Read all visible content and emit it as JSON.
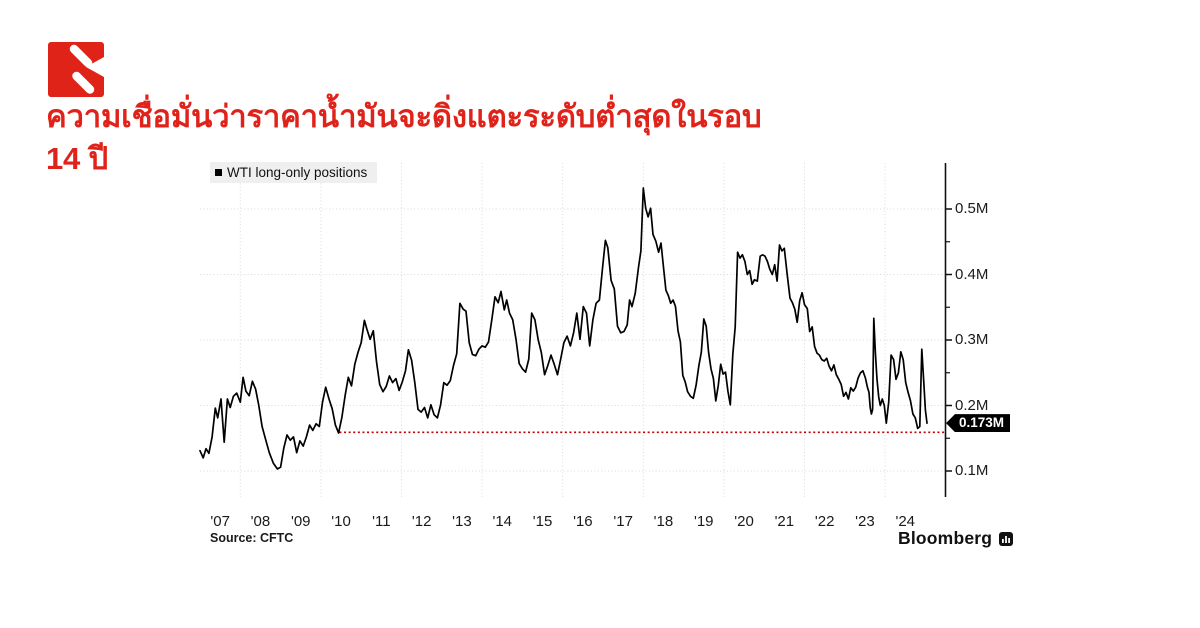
{
  "logo": {
    "name": "publisher-logo",
    "color": "#e02318"
  },
  "headline": {
    "text": "ความเชื่อมั่นว่าราคาน้ำมันจะดิ่งแตะระดับต่ำสุดในรอบ 14 ปี",
    "color": "#e0231a"
  },
  "chart_data": {
    "type": "line",
    "title": "WTI long-only positions",
    "legend": "WTI long-only positions",
    "source": "Source: CFTC",
    "branding": "Bloomberg",
    "grid": true,
    "legend_position": "top-left",
    "axis_range": {
      "x": [
        2007,
        2025.1
      ],
      "y_axis_side": "right",
      "y": [
        0.05,
        0.57
      ]
    },
    "y_ticks": [
      {
        "value": 0.5,
        "label": "0.5M"
      },
      {
        "value": 0.4,
        "label": "0.4M"
      },
      {
        "value": 0.3,
        "label": "0.3M"
      },
      {
        "value": 0.2,
        "label": "0.2M"
      },
      {
        "value": 0.1,
        "label": "0.1M"
      }
    ],
    "y_minor_ticks": [
      0.45,
      0.35,
      0.25,
      0.15
    ],
    "x_ticks": [
      {
        "year": 2007.5,
        "label": "'07"
      },
      {
        "year": 2008.5,
        "label": "'08"
      },
      {
        "year": 2009.5,
        "label": "'09"
      },
      {
        "year": 2010.5,
        "label": "'10"
      },
      {
        "year": 2011.5,
        "label": "'11"
      },
      {
        "year": 2012.5,
        "label": "'12"
      },
      {
        "year": 2013.5,
        "label": "'13"
      },
      {
        "year": 2014.5,
        "label": "'14"
      },
      {
        "year": 2015.5,
        "label": "'15"
      },
      {
        "year": 2016.5,
        "label": "'16"
      },
      {
        "year": 2017.5,
        "label": "'17"
      },
      {
        "year": 2018.5,
        "label": "'18"
      },
      {
        "year": 2019.5,
        "label": "'19"
      },
      {
        "year": 2020.5,
        "label": "'20"
      },
      {
        "year": 2021.5,
        "label": "'21"
      },
      {
        "year": 2022.5,
        "label": "'22"
      },
      {
        "year": 2023.5,
        "label": "'23"
      },
      {
        "year": 2024.5,
        "label": "'24"
      }
    ],
    "grid_years": [
      2008,
      2010,
      2012,
      2014,
      2016,
      2018,
      2020,
      2022,
      2024
    ],
    "reference_line": {
      "value": 0.159,
      "start_year": 2010.46,
      "color": "#c40000",
      "style": "dotted",
      "meaning": "14-year low level"
    },
    "annotation": {
      "label": "0.173M",
      "value": 0.173
    },
    "series": [
      {
        "name": "WTI long-only positions",
        "color": "#000000",
        "points": [
          [
            2007.0,
            0.131
          ],
          [
            2007.08,
            0.12
          ],
          [
            2007.15,
            0.134
          ],
          [
            2007.22,
            0.127
          ],
          [
            2007.3,
            0.152
          ],
          [
            2007.38,
            0.196
          ],
          [
            2007.44,
            0.181
          ],
          [
            2007.52,
            0.21
          ],
          [
            2007.6,
            0.144
          ],
          [
            2007.68,
            0.21
          ],
          [
            2007.75,
            0.197
          ],
          [
            2007.83,
            0.214
          ],
          [
            2007.91,
            0.219
          ],
          [
            2008.0,
            0.205
          ],
          [
            2008.07,
            0.243
          ],
          [
            2008.14,
            0.222
          ],
          [
            2008.22,
            0.215
          ],
          [
            2008.3,
            0.237
          ],
          [
            2008.38,
            0.225
          ],
          [
            2008.46,
            0.2
          ],
          [
            2008.54,
            0.168
          ],
          [
            2008.62,
            0.15
          ],
          [
            2008.72,
            0.128
          ],
          [
            2008.82,
            0.112
          ],
          [
            2008.92,
            0.103
          ],
          [
            2009.0,
            0.106
          ],
          [
            2009.08,
            0.135
          ],
          [
            2009.16,
            0.155
          ],
          [
            2009.24,
            0.147
          ],
          [
            2009.32,
            0.152
          ],
          [
            2009.4,
            0.128
          ],
          [
            2009.48,
            0.146
          ],
          [
            2009.56,
            0.138
          ],
          [
            2009.64,
            0.152
          ],
          [
            2009.72,
            0.17
          ],
          [
            2009.8,
            0.162
          ],
          [
            2009.88,
            0.172
          ],
          [
            2009.96,
            0.168
          ],
          [
            2010.04,
            0.205
          ],
          [
            2010.12,
            0.228
          ],
          [
            2010.2,
            0.21
          ],
          [
            2010.28,
            0.195
          ],
          [
            2010.36,
            0.17
          ],
          [
            2010.44,
            0.158
          ],
          [
            2010.52,
            0.182
          ],
          [
            2010.6,
            0.215
          ],
          [
            2010.68,
            0.243
          ],
          [
            2010.76,
            0.23
          ],
          [
            2010.84,
            0.263
          ],
          [
            2010.92,
            0.281
          ],
          [
            2011.0,
            0.296
          ],
          [
            2011.08,
            0.33
          ],
          [
            2011.14,
            0.317
          ],
          [
            2011.22,
            0.301
          ],
          [
            2011.3,
            0.314
          ],
          [
            2011.38,
            0.267
          ],
          [
            2011.46,
            0.232
          ],
          [
            2011.54,
            0.221
          ],
          [
            2011.62,
            0.229
          ],
          [
            2011.7,
            0.245
          ],
          [
            2011.78,
            0.235
          ],
          [
            2011.86,
            0.241
          ],
          [
            2011.94,
            0.223
          ],
          [
            2012.02,
            0.236
          ],
          [
            2012.1,
            0.253
          ],
          [
            2012.17,
            0.285
          ],
          [
            2012.25,
            0.269
          ],
          [
            2012.33,
            0.235
          ],
          [
            2012.41,
            0.194
          ],
          [
            2012.49,
            0.19
          ],
          [
            2012.57,
            0.197
          ],
          [
            2012.65,
            0.181
          ],
          [
            2012.73,
            0.201
          ],
          [
            2012.81,
            0.186
          ],
          [
            2012.89,
            0.181
          ],
          [
            2012.97,
            0.201
          ],
          [
            2013.05,
            0.235
          ],
          [
            2013.13,
            0.231
          ],
          [
            2013.21,
            0.238
          ],
          [
            2013.29,
            0.261
          ],
          [
            2013.37,
            0.279
          ],
          [
            2013.45,
            0.356
          ],
          [
            2013.53,
            0.347
          ],
          [
            2013.6,
            0.344
          ],
          [
            2013.68,
            0.296
          ],
          [
            2013.76,
            0.278
          ],
          [
            2013.84,
            0.276
          ],
          [
            2013.92,
            0.286
          ],
          [
            2014.0,
            0.291
          ],
          [
            2014.08,
            0.289
          ],
          [
            2014.16,
            0.297
          ],
          [
            2014.24,
            0.331
          ],
          [
            2014.32,
            0.366
          ],
          [
            2014.4,
            0.357
          ],
          [
            2014.47,
            0.374
          ],
          [
            2014.55,
            0.346
          ],
          [
            2014.61,
            0.361
          ],
          [
            2014.68,
            0.341
          ],
          [
            2014.76,
            0.331
          ],
          [
            2014.84,
            0.301
          ],
          [
            2014.92,
            0.264
          ],
          [
            2015.0,
            0.256
          ],
          [
            2015.08,
            0.251
          ],
          [
            2015.16,
            0.271
          ],
          [
            2015.23,
            0.341
          ],
          [
            2015.31,
            0.331
          ],
          [
            2015.39,
            0.301
          ],
          [
            2015.47,
            0.281
          ],
          [
            2015.55,
            0.247
          ],
          [
            2015.63,
            0.261
          ],
          [
            2015.71,
            0.277
          ],
          [
            2015.79,
            0.263
          ],
          [
            2015.87,
            0.247
          ],
          [
            2015.95,
            0.271
          ],
          [
            2016.03,
            0.296
          ],
          [
            2016.11,
            0.306
          ],
          [
            2016.19,
            0.291
          ],
          [
            2016.27,
            0.311
          ],
          [
            2016.35,
            0.341
          ],
          [
            2016.43,
            0.301
          ],
          [
            2016.51,
            0.351
          ],
          [
            2016.59,
            0.341
          ],
          [
            2016.67,
            0.291
          ],
          [
            2016.75,
            0.331
          ],
          [
            2016.83,
            0.356
          ],
          [
            2016.91,
            0.361
          ],
          [
            2016.99,
            0.411
          ],
          [
            2017.06,
            0.452
          ],
          [
            2017.12,
            0.441
          ],
          [
            2017.2,
            0.391
          ],
          [
            2017.28,
            0.378
          ],
          [
            2017.36,
            0.321
          ],
          [
            2017.44,
            0.311
          ],
          [
            2017.52,
            0.313
          ],
          [
            2017.6,
            0.323
          ],
          [
            2017.66,
            0.361
          ],
          [
            2017.72,
            0.351
          ],
          [
            2017.8,
            0.371
          ],
          [
            2017.88,
            0.411
          ],
          [
            2017.94,
            0.436
          ],
          [
            2018.0,
            0.532
          ],
          [
            2018.06,
            0.501
          ],
          [
            2018.12,
            0.488
          ],
          [
            2018.18,
            0.501
          ],
          [
            2018.24,
            0.461
          ],
          [
            2018.31,
            0.451
          ],
          [
            2018.38,
            0.434
          ],
          [
            2018.44,
            0.448
          ],
          [
            2018.5,
            0.411
          ],
          [
            2018.56,
            0.376
          ],
          [
            2018.62,
            0.368
          ],
          [
            2018.68,
            0.356
          ],
          [
            2018.74,
            0.361
          ],
          [
            2018.8,
            0.351
          ],
          [
            2018.86,
            0.314
          ],
          [
            2018.92,
            0.297
          ],
          [
            2018.98,
            0.246
          ],
          [
            2019.04,
            0.236
          ],
          [
            2019.1,
            0.221
          ],
          [
            2019.17,
            0.214
          ],
          [
            2019.24,
            0.211
          ],
          [
            2019.31,
            0.231
          ],
          [
            2019.38,
            0.261
          ],
          [
            2019.44,
            0.281
          ],
          [
            2019.5,
            0.332
          ],
          [
            2019.56,
            0.321
          ],
          [
            2019.62,
            0.281
          ],
          [
            2019.68,
            0.256
          ],
          [
            2019.74,
            0.241
          ],
          [
            2019.8,
            0.207
          ],
          [
            2019.86,
            0.231
          ],
          [
            2019.92,
            0.263
          ],
          [
            2019.98,
            0.248
          ],
          [
            2020.04,
            0.251
          ],
          [
            2020.1,
            0.222
          ],
          [
            2020.16,
            0.201
          ],
          [
            2020.22,
            0.278
          ],
          [
            2020.28,
            0.32
          ],
          [
            2020.34,
            0.434
          ],
          [
            2020.4,
            0.425
          ],
          [
            2020.46,
            0.43
          ],
          [
            2020.52,
            0.42
          ],
          [
            2020.58,
            0.4
          ],
          [
            2020.64,
            0.406
          ],
          [
            2020.7,
            0.385
          ],
          [
            2020.76,
            0.392
          ],
          [
            2020.83,
            0.39
          ],
          [
            2020.9,
            0.428
          ],
          [
            2020.96,
            0.43
          ],
          [
            2021.02,
            0.428
          ],
          [
            2021.08,
            0.42
          ],
          [
            2021.14,
            0.408
          ],
          [
            2021.2,
            0.4
          ],
          [
            2021.26,
            0.415
          ],
          [
            2021.32,
            0.39
          ],
          [
            2021.38,
            0.445
          ],
          [
            2021.44,
            0.436
          ],
          [
            2021.5,
            0.44
          ],
          [
            2021.57,
            0.4
          ],
          [
            2021.64,
            0.364
          ],
          [
            2021.7,
            0.357
          ],
          [
            2021.76,
            0.347
          ],
          [
            2021.82,
            0.327
          ],
          [
            2021.88,
            0.36
          ],
          [
            2021.94,
            0.372
          ],
          [
            2022.0,
            0.354
          ],
          [
            2022.07,
            0.348
          ],
          [
            2022.13,
            0.313
          ],
          [
            2022.19,
            0.32
          ],
          [
            2022.25,
            0.29
          ],
          [
            2022.31,
            0.28
          ],
          [
            2022.37,
            0.277
          ],
          [
            2022.43,
            0.27
          ],
          [
            2022.49,
            0.268
          ],
          [
            2022.55,
            0.272
          ],
          [
            2022.61,
            0.26
          ],
          [
            2022.67,
            0.253
          ],
          [
            2022.73,
            0.262
          ],
          [
            2022.79,
            0.247
          ],
          [
            2022.85,
            0.24
          ],
          [
            2022.91,
            0.232
          ],
          [
            2022.97,
            0.214
          ],
          [
            2023.03,
            0.22
          ],
          [
            2023.09,
            0.21
          ],
          [
            2023.15,
            0.227
          ],
          [
            2023.21,
            0.222
          ],
          [
            2023.27,
            0.228
          ],
          [
            2023.33,
            0.242
          ],
          [
            2023.39,
            0.25
          ],
          [
            2023.45,
            0.253
          ],
          [
            2023.51,
            0.242
          ],
          [
            2023.56,
            0.228
          ],
          [
            2023.6,
            0.22
          ],
          [
            2023.63,
            0.197
          ],
          [
            2023.66,
            0.187
          ],
          [
            2023.69,
            0.194
          ],
          [
            2023.72,
            0.333
          ],
          [
            2023.76,
            0.28
          ],
          [
            2023.8,
            0.24
          ],
          [
            2023.84,
            0.213
          ],
          [
            2023.88,
            0.2
          ],
          [
            2023.93,
            0.21
          ],
          [
            2023.98,
            0.2
          ],
          [
            2024.03,
            0.173
          ],
          [
            2024.09,
            0.205
          ],
          [
            2024.15,
            0.277
          ],
          [
            2024.21,
            0.27
          ],
          [
            2024.27,
            0.24
          ],
          [
            2024.33,
            0.25
          ],
          [
            2024.39,
            0.282
          ],
          [
            2024.45,
            0.27
          ],
          [
            2024.51,
            0.235
          ],
          [
            2024.57,
            0.22
          ],
          [
            2024.63,
            0.207
          ],
          [
            2024.69,
            0.187
          ],
          [
            2024.75,
            0.181
          ],
          [
            2024.81,
            0.165
          ],
          [
            2024.86,
            0.168
          ],
          [
            2024.91,
            0.286
          ],
          [
            2024.96,
            0.235
          ],
          [
            2025.0,
            0.193
          ],
          [
            2025.04,
            0.173
          ]
        ]
      }
    ]
  }
}
